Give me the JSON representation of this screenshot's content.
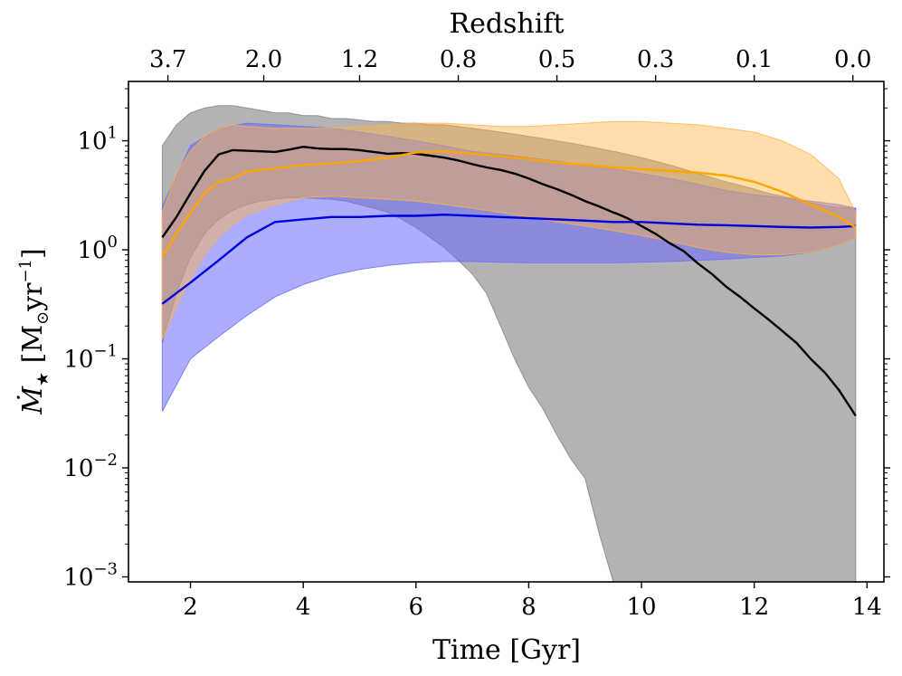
{
  "chart_data": {
    "type": "area",
    "title": "",
    "xlabel": "Time [Gyr]",
    "ylabel_main": "Ṁ",
    "ylabel_sub": "★",
    "ylabel_unit": " [M",
    "ylabel_unit_sub": "⊙",
    "ylabel_unit_tail": "yr",
    "ylabel_unit_exp": "−1",
    "ylabel_unit_close": "]",
    "top_axis_label": "Redshift",
    "xlim": [
      0.9,
      14.3
    ],
    "ylim": [
      0.0009,
      35
    ],
    "yscale": "log",
    "x_ticks": [
      {
        "value": 2,
        "label": "2"
      },
      {
        "value": 4,
        "label": "4"
      },
      {
        "value": 6,
        "label": "6"
      },
      {
        "value": 8,
        "label": "8"
      },
      {
        "value": 10,
        "label": "10"
      },
      {
        "value": 12,
        "label": "12"
      },
      {
        "value": 14,
        "label": "14"
      }
    ],
    "y_ticks": [
      {
        "value": 10,
        "base": "10",
        "exp": "1"
      },
      {
        "value": 1,
        "base": "10",
        "exp": "0"
      },
      {
        "value": 0.1,
        "base": "10",
        "exp": "−1"
      },
      {
        "value": 0.01,
        "base": "10",
        "exp": "−2"
      },
      {
        "value": 0.001,
        "base": "10",
        "exp": "−3"
      }
    ],
    "top_ticks": [
      {
        "time": 1.6,
        "label": "3.7"
      },
      {
        "time": 3.3,
        "label": "2.0"
      },
      {
        "time": 5.0,
        "label": "1.2"
      },
      {
        "time": 6.75,
        "label": "0.8"
      },
      {
        "time": 8.5,
        "label": "0.5"
      },
      {
        "time": 10.25,
        "label": "0.3"
      },
      {
        "time": 12.0,
        "label": "0.1"
      },
      {
        "time": 13.75,
        "label": "0.0"
      }
    ],
    "series": [
      {
        "name": "gray",
        "line_color": "#000000",
        "band_color": "#808080",
        "band_opacity": 0.6,
        "x": [
          1.5,
          1.75,
          2.0,
          2.25,
          2.5,
          2.75,
          3.0,
          3.25,
          3.5,
          3.75,
          4.0,
          4.25,
          4.5,
          4.75,
          5.0,
          5.25,
          5.5,
          5.75,
          6.0,
          6.25,
          6.5,
          6.75,
          7.0,
          7.25,
          7.5,
          7.75,
          8.0,
          8.25,
          8.5,
          8.75,
          9.0,
          9.25,
          9.5,
          9.56,
          9.75,
          10.0,
          10.25,
          10.5,
          10.75,
          11.0,
          11.25,
          11.5,
          11.75,
          12.0,
          12.25,
          12.5,
          12.75,
          13.0,
          13.25,
          13.5,
          13.8
        ],
        "median": [
          1.3,
          2.0,
          3.3,
          5.3,
          7.5,
          8.2,
          8.1,
          8.0,
          7.9,
          8.3,
          8.8,
          8.5,
          8.4,
          8.4,
          8.2,
          7.9,
          7.6,
          7.7,
          7.6,
          7.3,
          7.0,
          6.6,
          6.1,
          5.7,
          5.4,
          5.0,
          4.5,
          4.0,
          3.6,
          3.2,
          2.8,
          2.5,
          2.2,
          2.15,
          1.95,
          1.65,
          1.4,
          1.15,
          0.97,
          0.75,
          0.6,
          0.46,
          0.37,
          0.29,
          0.23,
          0.18,
          0.14,
          0.1,
          0.075,
          0.052,
          0.03
        ],
        "upper": [
          9.0,
          14.0,
          18.0,
          20.0,
          21.0,
          21.0,
          20.0,
          19.0,
          18.0,
          18.0,
          17.0,
          17.0,
          16.0,
          16.0,
          15.5,
          15.0,
          15.0,
          14.5,
          14.5,
          14.0,
          14.0,
          13.5,
          13.0,
          12.5,
          12.0,
          11.5,
          11.0,
          10.5,
          10.0,
          9.5,
          9.0,
          8.5,
          8.0,
          7.9,
          7.5,
          7.0,
          6.5,
          6.0,
          5.5,
          5.0,
          4.6,
          4.2,
          3.9,
          3.6,
          3.3,
          3.1,
          2.9,
          2.7,
          2.55,
          2.45,
          2.4
        ],
        "lower": [
          0.14,
          0.4,
          0.85,
          1.4,
          1.9,
          2.3,
          2.6,
          2.8,
          2.9,
          3.0,
          3.0,
          2.95,
          2.9,
          2.8,
          2.6,
          2.4,
          2.2,
          1.9,
          1.6,
          1.3,
          1.05,
          0.8,
          0.6,
          0.4,
          0.2,
          0.1,
          0.055,
          0.035,
          0.02,
          0.012,
          0.008,
          0.0025,
          0.0009,
          0.0009,
          0.0009,
          0.0009,
          0.0009,
          0.0009,
          0.0009,
          0.0009,
          0.0009,
          0.0009,
          0.0009,
          0.0009,
          0.0009,
          0.0009,
          0.0009,
          0.0009,
          0.0009,
          0.0009,
          0.0009
        ]
      },
      {
        "name": "blue",
        "line_color": "#0000dd",
        "band_color": "#6a6aff",
        "band_opacity": 0.55,
        "x": [
          1.5,
          2.0,
          2.5,
          3.0,
          3.5,
          4.0,
          4.5,
          5.0,
          5.5,
          6.0,
          6.5,
          7.0,
          7.5,
          8.0,
          8.5,
          9.0,
          9.5,
          10.0,
          10.5,
          11.0,
          11.5,
          12.0,
          12.5,
          13.0,
          13.5,
          13.8
        ],
        "median": [
          0.32,
          0.5,
          0.8,
          1.3,
          1.8,
          1.9,
          2.0,
          2.0,
          2.05,
          2.05,
          2.1,
          2.05,
          2.0,
          1.95,
          1.9,
          1.85,
          1.8,
          1.8,
          1.75,
          1.7,
          1.68,
          1.65,
          1.62,
          1.6,
          1.62,
          1.65
        ],
        "upper": [
          2.5,
          9.0,
          13.0,
          14.5,
          14.0,
          13.5,
          13.0,
          12.0,
          11.0,
          10.0,
          9.0,
          8.0,
          7.5,
          7.0,
          6.5,
          6.0,
          5.5,
          5.0,
          4.5,
          4.0,
          3.5,
          3.2,
          3.0,
          2.8,
          2.6,
          2.4
        ],
        "lower": [
          0.033,
          0.1,
          0.16,
          0.25,
          0.37,
          0.48,
          0.58,
          0.66,
          0.72,
          0.76,
          0.78,
          0.78,
          0.77,
          0.76,
          0.76,
          0.76,
          0.76,
          0.77,
          0.78,
          0.8,
          0.82,
          0.85,
          0.88,
          0.95,
          1.1,
          1.3
        ]
      },
      {
        "name": "orange",
        "line_color": "#ffa500",
        "band_color": "#ffb347",
        "band_opacity": 0.45,
        "x": [
          1.5,
          1.75,
          2.0,
          2.25,
          2.5,
          2.75,
          3.0,
          3.5,
          4.0,
          4.5,
          5.0,
          5.5,
          6.0,
          6.5,
          7.0,
          7.5,
          8.0,
          8.5,
          9.0,
          9.5,
          10.0,
          10.5,
          11.0,
          11.5,
          12.0,
          12.5,
          13.0,
          13.5,
          13.8
        ],
        "median": [
          0.85,
          1.4,
          2.2,
          3.3,
          4.2,
          4.5,
          5.2,
          5.6,
          6.0,
          6.2,
          6.5,
          7.0,
          7.8,
          8.0,
          7.6,
          7.2,
          6.8,
          6.3,
          6.0,
          5.7,
          5.5,
          5.3,
          5.1,
          4.8,
          4.2,
          3.4,
          2.6,
          2.0,
          1.6
        ],
        "upper": [
          2.2,
          5.0,
          8.0,
          11.0,
          13.0,
          14.0,
          13.5,
          13.0,
          13.0,
          13.0,
          13.5,
          14.0,
          14.5,
          14.5,
          14.0,
          13.5,
          13.5,
          14.0,
          14.5,
          15.0,
          15.0,
          14.5,
          14.0,
          13.0,
          12.0,
          10.0,
          7.5,
          4.5,
          2.2
        ],
        "lower": [
          0.15,
          0.3,
          0.55,
          0.9,
          1.3,
          1.7,
          2.1,
          2.6,
          3.0,
          3.1,
          3.0,
          2.9,
          2.8,
          2.6,
          2.4,
          2.2,
          2.0,
          1.8,
          1.65,
          1.5,
          1.35,
          1.2,
          1.05,
          0.95,
          0.9,
          0.9,
          0.95,
          1.1,
          1.3
        ]
      }
    ]
  }
}
